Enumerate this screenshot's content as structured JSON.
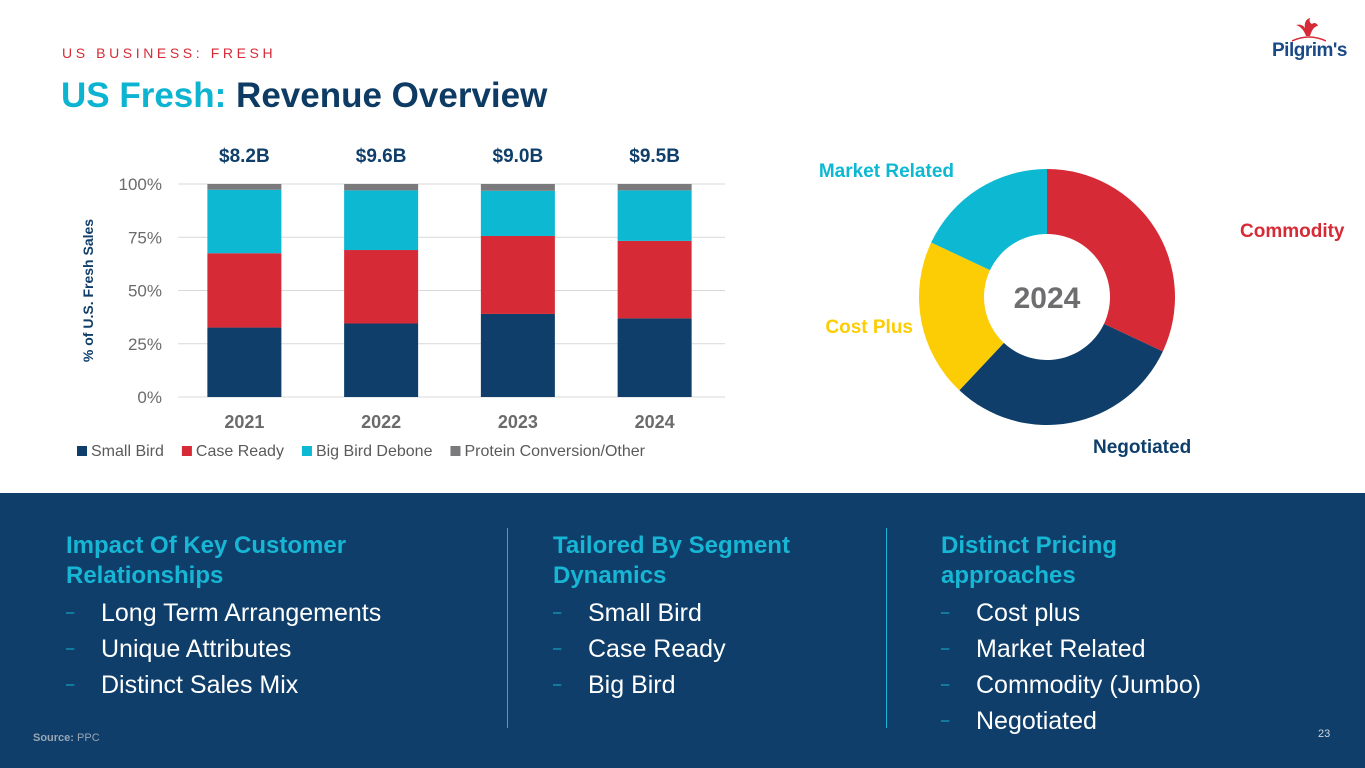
{
  "header": {
    "eyebrow": "US BUSINESS: FRESH",
    "title_prefix": "US Fresh:",
    "title_main": "Revenue Overview",
    "logo_text": "Pilgrim's"
  },
  "colors": {
    "navy": "#0e3e69",
    "red": "#d62b36",
    "cyan": "#0db8d3",
    "gray": "#7a7a7c",
    "yellow": "#fccd05",
    "title_cyan": "#0db4d1",
    "title_navy": "#0e3b63"
  },
  "chart_data": [
    {
      "type": "bar",
      "stacked": true,
      "categories": [
        "2021",
        "2022",
        "2023",
        "2024"
      ],
      "totals_labels": [
        "$8.2B",
        "$9.6B",
        "$9.0B",
        "$9.5B"
      ],
      "series": [
        {
          "name": "Small Bird",
          "color": "#0e3e69",
          "values": [
            32.6,
            34.5,
            39.0,
            36.9
          ]
        },
        {
          "name": "Case Ready",
          "color": "#d62b36",
          "values": [
            34.9,
            34.5,
            36.6,
            36.4
          ]
        },
        {
          "name": "Big Bird Debone",
          "color": "#0db8d3",
          "values": [
            29.8,
            28.0,
            21.2,
            23.7
          ]
        },
        {
          "name": "Protein Conversion/Other",
          "color": "#7a7a7c",
          "values": [
            2.7,
            3.0,
            3.2,
            3.0
          ]
        }
      ],
      "ylabel": "% of U.S. Fresh Sales",
      "xlabel": "",
      "ylim": [
        0,
        100
      ],
      "yticks": [
        0,
        25,
        50,
        75,
        100
      ],
      "ytick_labels": [
        "0%",
        "25%",
        "50%",
        "75%",
        "100%"
      ],
      "grid": true,
      "legend": "bottom"
    },
    {
      "type": "pie",
      "donut": true,
      "center_label": "2024",
      "slices": [
        {
          "name": "Commodity",
          "value": 32,
          "color": "#d62b36"
        },
        {
          "name": "Negotiated",
          "value": 30,
          "color": "#0e3e69"
        },
        {
          "name": "Cost Plus",
          "value": 20,
          "color": "#fccd05"
        },
        {
          "name": "Market Related",
          "value": 18,
          "color": "#0db8d3"
        }
      ],
      "legend": "labels-around"
    }
  ],
  "bottom": {
    "columns": [
      {
        "heading_lines": [
          "Impact Of Key Customer",
          "Relationships"
        ],
        "items": [
          "Long Term Arrangements",
          "Unique Attributes",
          "Distinct Sales Mix"
        ]
      },
      {
        "heading_lines": [
          "Tailored By Segment",
          "Dynamics"
        ],
        "items": [
          "Small Bird",
          "Case Ready",
          "Big Bird"
        ]
      },
      {
        "heading_lines": [
          "Distinct Pricing",
          "approaches"
        ],
        "items": [
          "Cost plus",
          "Market Related",
          "Commodity (Jumbo)",
          "Negotiated"
        ]
      }
    ],
    "bullet": "–",
    "source_label": "Source:",
    "source_value": "PPC",
    "page_number": "23"
  }
}
